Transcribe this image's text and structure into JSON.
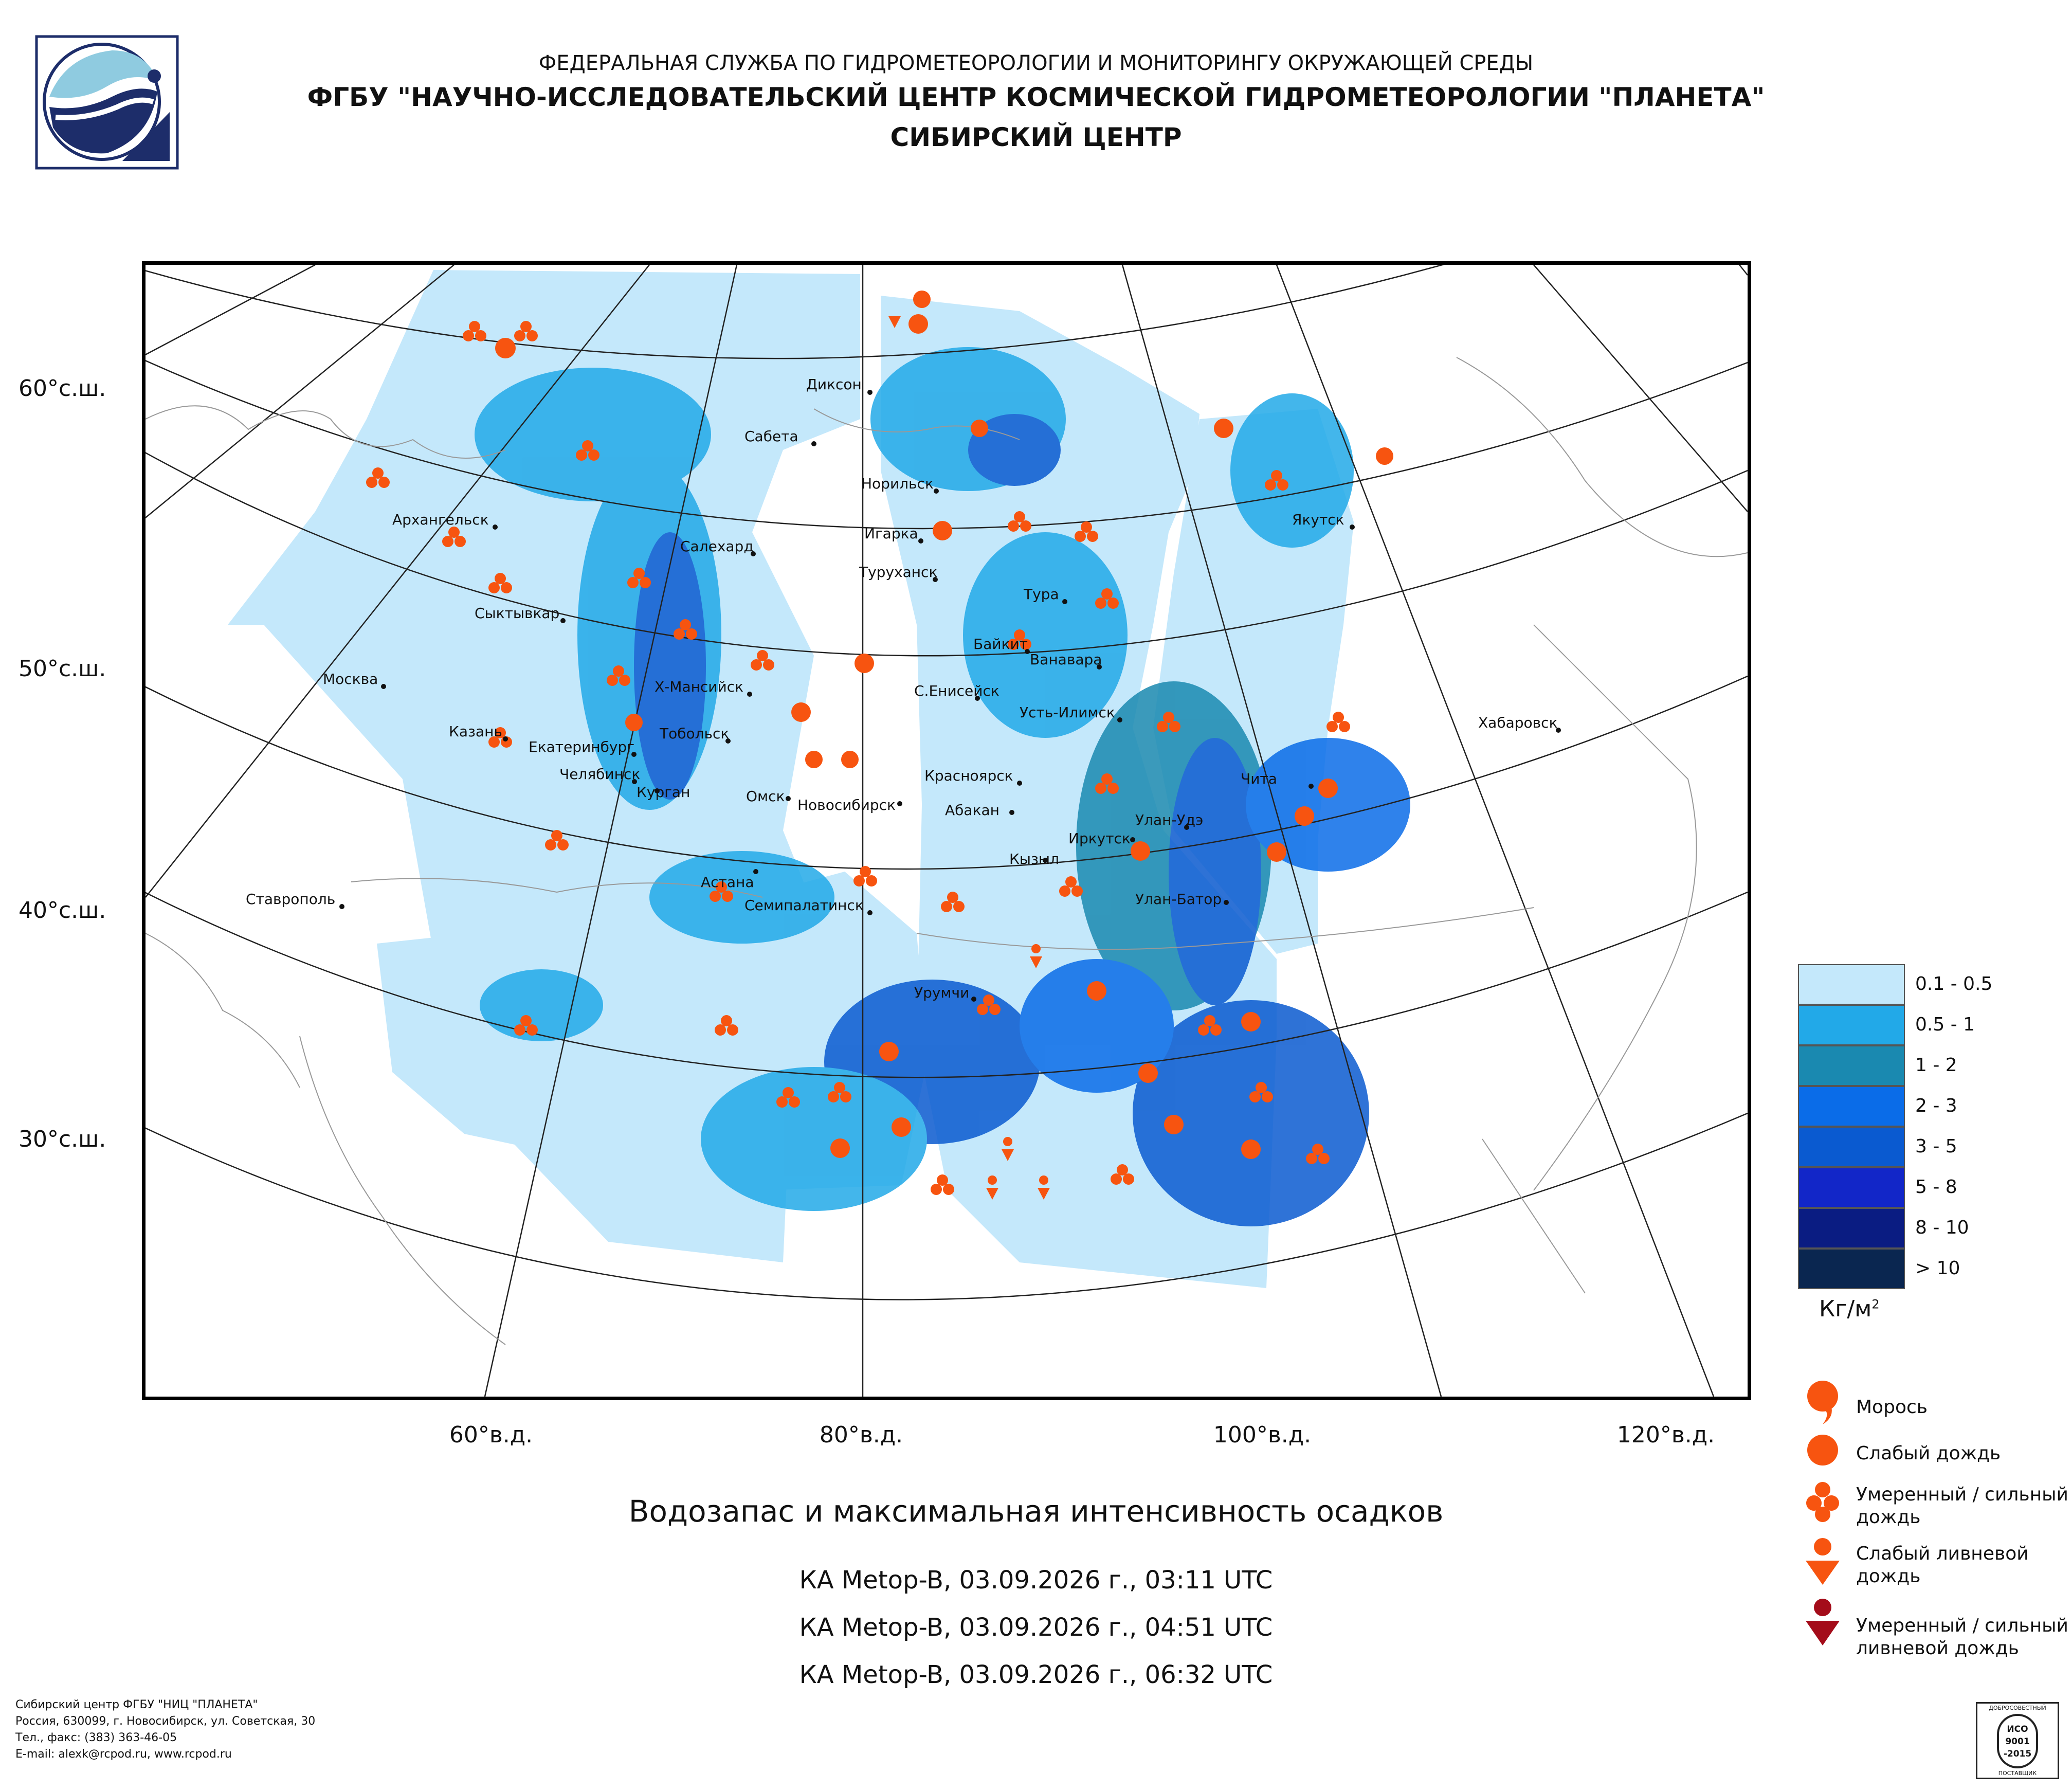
{
  "header": {
    "line1": "ФЕДЕРАЛЬНАЯ СЛУЖБА ПО ГИДРОМЕТЕОРОЛОГИИ И МОНИТОРИНГУ ОКРУЖАЮЩЕЙ СРЕДЫ",
    "line2": "ФГБУ \"НАУЧНО-ИССЛЕДОВАТЕЛЬСКИЙ ЦЕНТР КОСМИЧЕСКОЙ ГИДРОМЕТЕОРОЛОГИИ \"ПЛАНЕТА\"",
    "line3": "СИБИРСКИЙ ЦЕНТР"
  },
  "map": {
    "lat_labels": [
      "60°с.ш.",
      "50°с.ш.",
      "40°с.ш.",
      "30°с.ш."
    ],
    "lon_labels": [
      "60°в.д.",
      "80°в.д.",
      "100°в.д.",
      "120°в.д."
    ],
    "cities": [
      "Диксон",
      "Сабета",
      "Норильск",
      "Архангельск",
      "Салехард",
      "Игарка",
      "Туруханск",
      "Якутск",
      "Тура",
      "Сыктывкар",
      "Байкит",
      "Ванавара",
      "Москва",
      "Х-Мансийск",
      "С.Енисейск",
      "Усть-Илимск",
      "Хабаровск",
      "Казань",
      "Тобольск",
      "Екатеринбург",
      "Челябинск",
      "Курган",
      "Омск",
      "Красноярск",
      "Чита",
      "Новосибирск",
      "Абакан",
      "Улан-Удэ",
      "Иркутск",
      "Кызыл",
      "Ставрополь",
      "Астана",
      "Семипалатинск",
      "Улан-Батор",
      "Урумчи"
    ]
  },
  "caption": "Водозапас и максимальная интенсивность осадков",
  "satellite_passes": [
    "КА Metop-B, 03.09.2026 г., 03:11 UTC",
    "КА Metop-B, 03.09.2026 г., 04:51 UTC",
    "КА Metop-B, 03.09.2026 г., 06:32 UTC"
  ],
  "water_legend": {
    "items": [
      {
        "label": "0.1 - 0.5",
        "color": "#c4e8fb"
      },
      {
        "label": "0.5 - 1",
        "color": "#22a9e8"
      },
      {
        "label": "1 - 2",
        "color": "#1a89b0"
      },
      {
        "label": "2 - 3",
        "color": "#0a6ce8"
      },
      {
        "label": "3 - 5",
        "color": "#0a5ad0"
      },
      {
        "label": "5 - 8",
        "color": "#1226c8"
      },
      {
        "label": "8 - 10",
        "color": "#0a1c82"
      },
      {
        "label": "> 10",
        "color": "#0a2650"
      }
    ],
    "units": "Кг/м",
    "units_sup": "2"
  },
  "precip_legend": {
    "drizzle": "Морось",
    "light_rain": "Слабый дождь",
    "moderate_rain_1": "Умеренный / сильный",
    "moderate_rain_2": "дождь",
    "light_shower_1": "Слабый ливневой",
    "light_shower_2": "дождь",
    "heavy_shower_1": "Умеренный / сильный",
    "heavy_shower_2": "ливневой дождь",
    "orange": "#f75410",
    "darkred": "#a40c1a"
  },
  "footer": {
    "line1": "Сибирский центр ФГБУ \"НИЦ \"ПЛАНЕТА\"",
    "line2": "Россия, 630099, г. Новосибирск, ул. Советская, 30",
    "line3": "Тел., факс: (383) 363-46-05",
    "line4": "E-mail: alexk@rcpod.ru, www.rcpod.ru"
  },
  "cert": {
    "top": "ДОБРОСОВЕСТНЫЙ",
    "l1": "ИСО",
    "l2": "9001",
    "l3": "-2015",
    "bottom": "ПОСТАВЩИК"
  }
}
